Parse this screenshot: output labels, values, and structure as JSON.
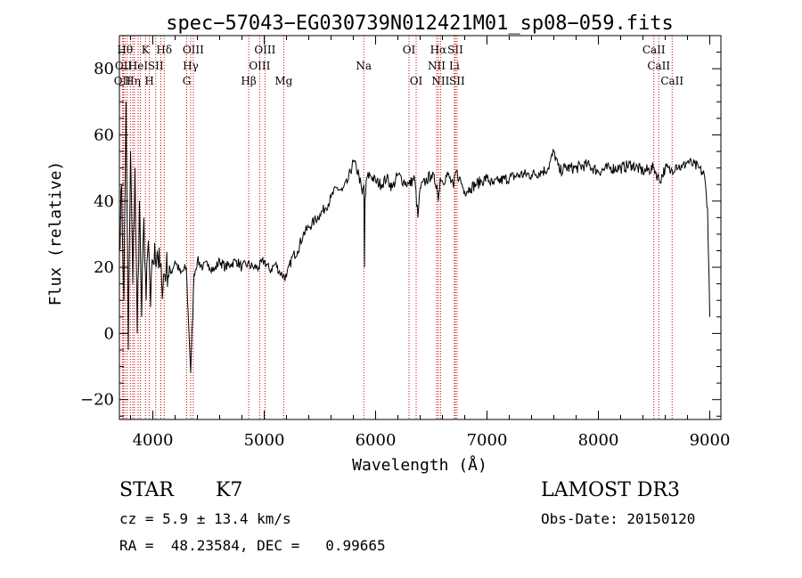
{
  "chart_data": {
    "type": "line",
    "title": "spec−57043−EG030739N012421M01_sp08−059.fits",
    "xlabel": "Wavelength (Å)",
    "ylabel": "Flux (relative)",
    "xlim": [
      3700,
      9100
    ],
    "ylim": [
      -26,
      90
    ],
    "x_ticks": [
      4000,
      5000,
      6000,
      7000,
      8000,
      9000
    ],
    "y_ticks": [
      -20,
      0,
      20,
      40,
      60,
      80
    ],
    "grid": false,
    "line_color": "#000000",
    "marker_color": "#cc0000",
    "series": [
      {
        "x": [
          3700,
          3720,
          3740,
          3760,
          3780,
          3800,
          3820,
          3840,
          3860,
          3880,
          3900,
          3920,
          3940,
          3960,
          3980,
          4000,
          4040,
          4080,
          4120,
          4160,
          4200,
          4250,
          4300,
          4340,
          4370,
          4400,
          4450,
          4500,
          4550,
          4600,
          4650,
          4700,
          4750,
          4800,
          4850,
          4900,
          4950,
          5000,
          5050,
          5100,
          5150,
          5200,
          5250,
          5300,
          5350,
          5400,
          5450,
          5500,
          5550,
          5600,
          5650,
          5700,
          5750,
          5800,
          5850,
          5880,
          5895,
          5900,
          5905,
          5920,
          5950,
          6000,
          6050,
          6100,
          6150,
          6200,
          6250,
          6300,
          6350,
          6380,
          6400,
          6450,
          6500,
          6550,
          6563,
          6580,
          6600,
          6650,
          6700,
          6720,
          6750,
          6800,
          6850,
          6900,
          6950,
          7000,
          7050,
          7100,
          7200,
          7300,
          7400,
          7500,
          7550,
          7600,
          7650,
          7700,
          7800,
          7900,
          8000,
          8100,
          8200,
          8300,
          8400,
          8500,
          8550,
          8600,
          8650,
          8700,
          8750,
          8800,
          8850,
          8900,
          8950,
          8980,
          9000
        ],
        "values": [
          25,
          45,
          10,
          70,
          -5,
          55,
          15,
          50,
          0,
          40,
          5,
          35,
          10,
          28,
          8,
          22,
          25,
          15,
          20,
          18,
          22,
          18,
          20,
          -12,
          18,
          22,
          20,
          21,
          19,
          22,
          20,
          21,
          22,
          20,
          21,
          20,
          20,
          22,
          19,
          21,
          18,
          17,
          23,
          25,
          30,
          32,
          34,
          36,
          38,
          41,
          44,
          43,
          46,
          52,
          48,
          42,
          45,
          20,
          40,
          47,
          48,
          46,
          45,
          47,
          44,
          48,
          46,
          45,
          47,
          35,
          44,
          46,
          48,
          45,
          40,
          47,
          46,
          48,
          44,
          49,
          47,
          43,
          44,
          45,
          46,
          47,
          45,
          46,
          47,
          48,
          48,
          49,
          50,
          55,
          49,
          50,
          50,
          51,
          49,
          50,
          50,
          51,
          49,
          50,
          46,
          50,
          49,
          51,
          50,
          52,
          51,
          50,
          48,
          38,
          5
        ]
      }
    ],
    "line_markers": [
      {
        "wavelength": 3727,
        "label": "OII",
        "row": 3
      },
      {
        "wavelength": 3736,
        "label": "OII",
        "row": 2
      },
      {
        "wavelength": 3750,
        "label": "Hθ",
        "row": 1
      },
      {
        "wavelength": 3770,
        "label": "",
        "row": 0
      },
      {
        "wavelength": 3798,
        "label": "",
        "row": 0
      },
      {
        "wavelength": 3820,
        "label": "Hη",
        "row": 3
      },
      {
        "wavelength": 3835,
        "label": "",
        "row": 0
      },
      {
        "wavelength": 3868,
        "label": "HeI",
        "row": 2
      },
      {
        "wavelength": 3889,
        "label": "",
        "row": 0
      },
      {
        "wavelength": 3934,
        "label": "K",
        "row": 1
      },
      {
        "wavelength": 3969,
        "label": "H",
        "row": 3
      },
      {
        "wavelength": 4026,
        "label": "SII",
        "row": 2
      },
      {
        "wavelength": 4072,
        "label": "",
        "row": 0
      },
      {
        "wavelength": 4102,
        "label": "Hδ",
        "row": 1
      },
      {
        "wavelength": 4304,
        "label": "G",
        "row": 3
      },
      {
        "wavelength": 4340,
        "label": "Hγ",
        "row": 2
      },
      {
        "wavelength": 4363,
        "label": "OIII",
        "row": 1
      },
      {
        "wavelength": 4861,
        "label": "Hβ",
        "row": 3
      },
      {
        "wavelength": 4959,
        "label": "OIII",
        "row": 2
      },
      {
        "wavelength": 5007,
        "label": "OIII",
        "row": 1
      },
      {
        "wavelength": 5175,
        "label": "Mg",
        "row": 3
      },
      {
        "wavelength": 5894,
        "label": "Na",
        "row": 2
      },
      {
        "wavelength": 6300,
        "label": "OI",
        "row": 1
      },
      {
        "wavelength": 6364,
        "label": "OI",
        "row": 3
      },
      {
        "wavelength": 6548,
        "label": "NII",
        "row": 2
      },
      {
        "wavelength": 6563,
        "label": "Hα",
        "row": 1
      },
      {
        "wavelength": 6583,
        "label": "NII",
        "row": 3
      },
      {
        "wavelength": 6707,
        "label": "Li",
        "row": 2
      },
      {
        "wavelength": 6716,
        "label": "SII",
        "row": 1
      },
      {
        "wavelength": 6731,
        "label": "SII",
        "row": 3
      },
      {
        "wavelength": 8498,
        "label": "CaII",
        "row": 1
      },
      {
        "wavelength": 8542,
        "label": "CaII",
        "row": 2
      },
      {
        "wavelength": 8662,
        "label": "CaII",
        "row": 3
      }
    ]
  },
  "footer": {
    "object_class": "STAR",
    "subclass": "K7",
    "survey": "LAMOST DR3",
    "redshift": "cz = 5.9 ± 13.4 km/s",
    "obs_date": "Obs-Date: 20150120",
    "coords": "RA =  48.23584, DEC =   0.99665"
  }
}
